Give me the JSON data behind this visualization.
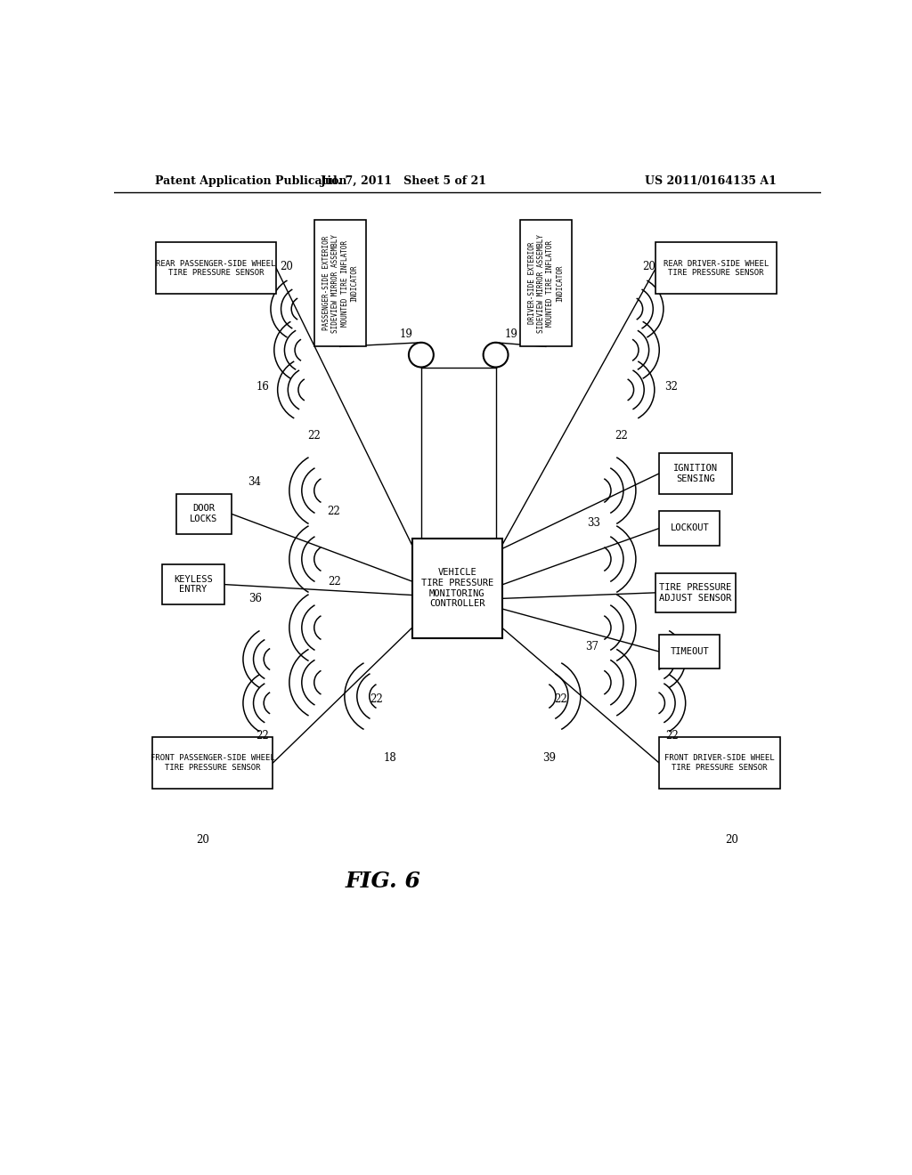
{
  "title_left": "Patent Application Publication",
  "title_mid": "Jul. 7, 2011   Sheet 5 of 21",
  "title_right": "US 2011/0164135 A1",
  "fig_label": "FIG. 6",
  "bg_color": "#ffffff"
}
